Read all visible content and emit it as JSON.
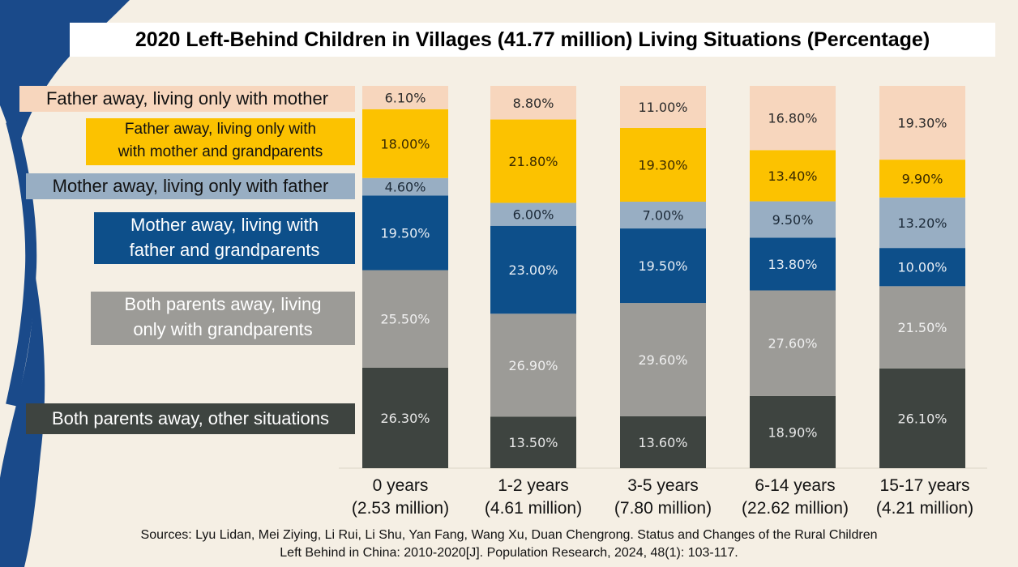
{
  "title": "2020 Left-Behind Children in Villages (41.77 million) Living Situations (Percentage)",
  "legend": [
    {
      "label": "Father away, living only with mother",
      "bg": "#f7d6bd",
      "fg": "#111111"
    },
    {
      "label_lines": [
        "Father away, living only with",
        "with mother and grandparents"
      ],
      "bg": "#fcc200",
      "fg": "#111111"
    },
    {
      "label": "Mother away, living only with father",
      "bg": "#98aec3",
      "fg": "#111111"
    },
    {
      "label_lines": [
        "Mother away, living with",
        "father and grandparents"
      ],
      "bg": "#0d4f8a",
      "fg": "#ffffff"
    },
    {
      "label_lines": [
        "Both parents away, living",
        "only with grandparents"
      ],
      "bg": "#9c9b97",
      "fg": "#ffffff"
    },
    {
      "label": "Both parents away, other situations",
      "bg": "#3e4440",
      "fg": "#ffffff"
    }
  ],
  "x_labels": [
    {
      "line1": "0 years",
      "line2": "(2.53 million)"
    },
    {
      "line1": "1-2 years",
      "line2": "(4.61 million)"
    },
    {
      "line1": "3-5 years",
      "line2": "(7.80 million)"
    },
    {
      "line1": "6-14 years",
      "line2": "(22.62 million)"
    },
    {
      "line1": "15-17 years",
      "line2": "(4.21 million)"
    }
  ],
  "sources": {
    "line1": "Sources: Lyu Lidan, Mei Ziying, Li Rui, Li Shu, Yan Fang, Wang Xu, Duan Chengrong. Status and Changes of the Rural Children",
    "line2": "Left Behind in China: 2010-2020[J]. Population Research, 2024, 48(1): 103-117."
  },
  "chart_data": {
    "type": "bar",
    "stacked": true,
    "percent": true,
    "title": "2020 Left-Behind Children in Villages (41.77 million) Living Situations (Percentage)",
    "categories": [
      "0 years (2.53 million)",
      "1-2 years (4.61 million)",
      "3-5 years (7.80 million)",
      "6-14 years (22.62 million)",
      "15-17 years (4.21 million)"
    ],
    "series": [
      {
        "name": "Both parents away, other situations",
        "color": "#3e4440",
        "text_color": "#e8e8e8",
        "values": [
          26.3,
          13.5,
          13.6,
          18.9,
          26.1
        ],
        "labels": [
          "26.30%",
          "13.50%",
          "13.60%",
          "18.90%",
          "26.10%"
        ]
      },
      {
        "name": "Both parents away, living only with grandparents",
        "color": "#9c9b97",
        "text_color": "#f0f0f0",
        "values": [
          25.5,
          26.9,
          29.6,
          27.6,
          21.5
        ],
        "labels": [
          "25.50%",
          "26.90%",
          "29.60%",
          "27.60%",
          "21.50%"
        ]
      },
      {
        "name": "Mother away, living with father and grandparents",
        "color": "#0d4f8a",
        "text_color": "#e8eef5",
        "values": [
          19.5,
          23.0,
          19.5,
          13.8,
          10.0
        ],
        "labels": [
          "19.50%",
          "23.00%",
          "19.50%",
          "13.80%",
          "10.00%"
        ]
      },
      {
        "name": "Mother away, living only with father",
        "color": "#98aec3",
        "text_color": "#1c2a38",
        "values": [
          4.6,
          6.0,
          7.0,
          9.5,
          13.2
        ],
        "labels": [
          "4.60%",
          "6.00%",
          "7.00%",
          "9.50%",
          "13.20%"
        ]
      },
      {
        "name": "Father away, living only with with mother and grandparents",
        "color": "#fcc200",
        "text_color": "#3a2a00",
        "values": [
          18.0,
          21.8,
          19.3,
          13.4,
          9.9
        ],
        "labels": [
          "18.00%",
          "21.80%",
          "19.30%",
          "13.40%",
          "9.90%"
        ]
      },
      {
        "name": "Father away, living only with mother",
        "color": "#f7d6bd",
        "text_color": "#2a2a2a",
        "values": [
          6.1,
          8.8,
          11.0,
          16.8,
          19.3
        ],
        "labels": [
          "6.10%",
          "8.80%",
          "11.00%",
          "16.80%",
          "19.30%"
        ]
      }
    ],
    "ylim": [
      0,
      100
    ]
  }
}
